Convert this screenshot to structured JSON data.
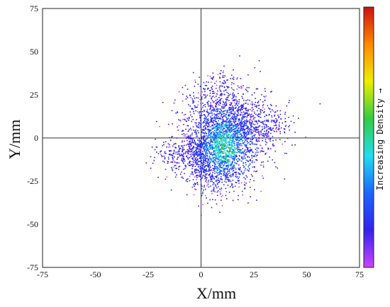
{
  "chart_data": {
    "type": "heatmap",
    "xlabel": "X/mm",
    "ylabel": "Y/mm",
    "xlim": [
      -75,
      75
    ],
    "ylim": [
      -75,
      75
    ],
    "xticks": [
      "-75",
      "-50",
      "-25",
      "0",
      "25",
      "50",
      "75"
    ],
    "yticks": [
      "75",
      "50",
      "25",
      "0",
      "-25",
      "-50",
      "-75"
    ],
    "crosshair_at": [
      0,
      0
    ],
    "colorbar_label": "Increasing Density →",
    "colormap": [
      "#cc44ff",
      "#3322ee",
      "#1a66ff",
      "#22ddee",
      "#33cc44",
      "#eeee00",
      "#ff8800",
      "#cc1111"
    ],
    "density_clusters": [
      {
        "x": 10,
        "y": -4,
        "sx": 9,
        "sy": 12,
        "n": 1600
      },
      {
        "x": 14,
        "y": 12,
        "sx": 11,
        "sy": 10,
        "n": 700
      },
      {
        "x": 5,
        "y": -18,
        "sx": 8,
        "sy": 6,
        "n": 380
      },
      {
        "x": -3,
        "y": -7,
        "sx": 9,
        "sy": 5,
        "n": 330
      },
      {
        "x": 23,
        "y": 5,
        "sx": 9,
        "sy": 5,
        "n": 220
      },
      {
        "x": 7,
        "y": 25,
        "sx": 6,
        "sy": 7,
        "n": 150
      }
    ],
    "density_tail": {
      "x_from": -22,
      "x_to": 43,
      "y_from": -12,
      "y_to": 12
    },
    "dense_core": {
      "x": 11,
      "y": -5,
      "sx": 6,
      "sy": 9
    }
  }
}
